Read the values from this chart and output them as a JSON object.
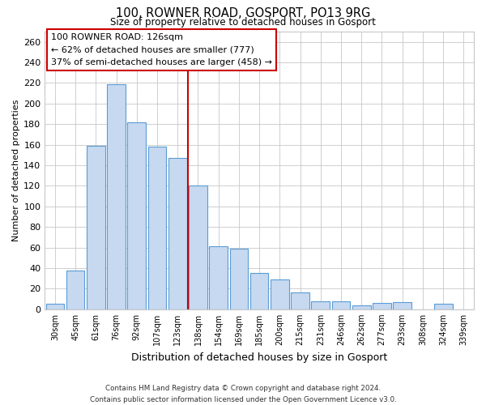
{
  "title": "100, ROWNER ROAD, GOSPORT, PO13 9RG",
  "subtitle": "Size of property relative to detached houses in Gosport",
  "xlabel": "Distribution of detached houses by size in Gosport",
  "ylabel": "Number of detached properties",
  "bar_labels": [
    "30sqm",
    "45sqm",
    "61sqm",
    "76sqm",
    "92sqm",
    "107sqm",
    "123sqm",
    "138sqm",
    "154sqm",
    "169sqm",
    "185sqm",
    "200sqm",
    "215sqm",
    "231sqm",
    "246sqm",
    "262sqm",
    "277sqm",
    "293sqm",
    "308sqm",
    "324sqm",
    "339sqm"
  ],
  "bar_values": [
    5,
    38,
    159,
    219,
    182,
    158,
    147,
    120,
    61,
    59,
    35,
    29,
    16,
    8,
    8,
    4,
    6,
    7,
    0,
    5,
    0
  ],
  "bar_color": "#c6d9f0",
  "bar_edge_color": "#5b9bd5",
  "vline_x_index": 6.5,
  "vline_color": "#cc0000",
  "ylim": [
    0,
    270
  ],
  "yticks": [
    0,
    20,
    40,
    60,
    80,
    100,
    120,
    140,
    160,
    180,
    200,
    220,
    240,
    260
  ],
  "annotation_title": "100 ROWNER ROAD: 126sqm",
  "annotation_line1": "← 62% of detached houses are smaller (777)",
  "annotation_line2": "37% of semi-detached houses are larger (458) →",
  "annotation_box_color": "#ffffff",
  "annotation_box_edge": "#cc0000",
  "footer1": "Contains HM Land Registry data © Crown copyright and database right 2024.",
  "footer2": "Contains public sector information licensed under the Open Government Licence v3.0.",
  "background_color": "#ffffff",
  "grid_color": "#c8c8c8"
}
